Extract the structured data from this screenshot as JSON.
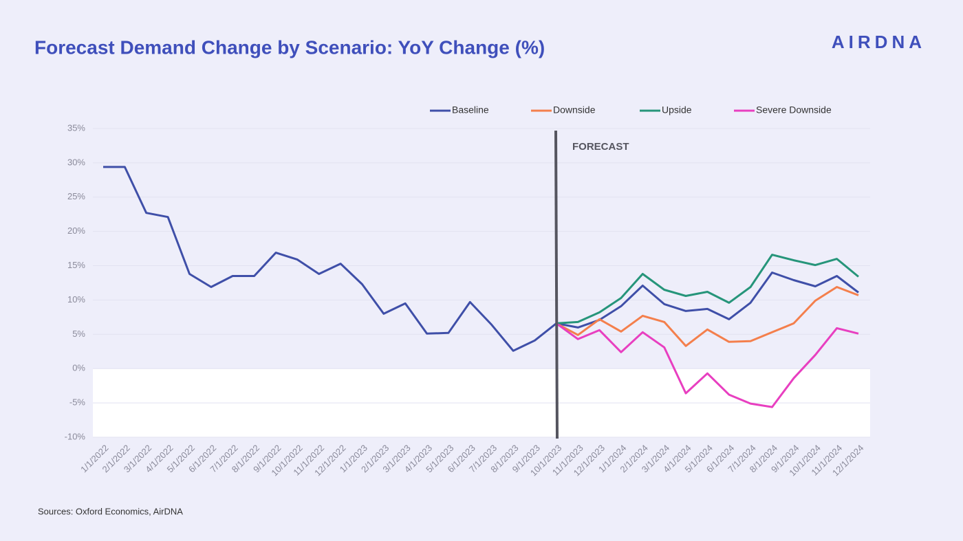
{
  "chart_data": {
    "type": "line",
    "title": "Forecast Demand Change by Scenario: YoY Change (%)",
    "logo": "AIRDNA",
    "annotation": "FORECAST",
    "source": "Sources: Oxford Economics, AirDNA",
    "categories": [
      "1/1/2022",
      "2/1/2022",
      "3/1/2022",
      "4/1/2022",
      "5/1/2022",
      "6/1/2022",
      "7/1/2022",
      "8/1/2022",
      "9/1/2022",
      "10/1/2022",
      "11/1/2022",
      "12/1/2022",
      "1/1/2023",
      "2/1/2023",
      "3/1/2023",
      "4/1/2023",
      "5/1/2023",
      "6/1/2023",
      "7/1/2023",
      "8/1/2023",
      "9/1/2023",
      "10/1/2023",
      "11/1/2023",
      "12/1/2023",
      "1/1/2024",
      "2/1/2024",
      "3/1/2024",
      "4/1/2024",
      "5/1/2024",
      "6/1/2024",
      "7/1/2024",
      "8/1/2024",
      "9/1/2024",
      "10/1/2024",
      "11/1/2024",
      "12/1/2024"
    ],
    "series": [
      {
        "name": "Baseline",
        "color": "#3f4fa8",
        "values": [
          29.4,
          29.4,
          22.7,
          22.1,
          13.8,
          11.9,
          13.5,
          13.5,
          16.9,
          15.9,
          13.8,
          15.3,
          12.3,
          8.0,
          9.5,
          5.1,
          5.2,
          9.7,
          6.4,
          2.6,
          4.1,
          6.6,
          6.0,
          7.1,
          9.1,
          12.1,
          9.4,
          8.4,
          8.7,
          7.2,
          9.6,
          14.0,
          12.9,
          12.0,
          13.5,
          11.1
        ]
      },
      {
        "name": "Downside",
        "color": "#f47f4c",
        "values": [
          null,
          null,
          null,
          null,
          null,
          null,
          null,
          null,
          null,
          null,
          null,
          null,
          null,
          null,
          null,
          null,
          null,
          null,
          null,
          null,
          null,
          6.6,
          4.9,
          7.2,
          5.4,
          7.7,
          6.8,
          3.3,
          5.7,
          3.9,
          4.0,
          5.3,
          6.6,
          9.9,
          11.9,
          10.7
        ]
      },
      {
        "name": "Upside",
        "color": "#26957a",
        "values": [
          null,
          null,
          null,
          null,
          null,
          null,
          null,
          null,
          null,
          null,
          null,
          null,
          null,
          null,
          null,
          null,
          null,
          null,
          null,
          null,
          null,
          6.6,
          6.8,
          8.2,
          10.3,
          13.8,
          11.5,
          10.6,
          11.2,
          9.6,
          11.9,
          16.6,
          15.8,
          15.1,
          16.0,
          13.4
        ]
      },
      {
        "name": "Severe Downside",
        "color": "#e83fc0",
        "values": [
          null,
          null,
          null,
          null,
          null,
          null,
          null,
          null,
          null,
          null,
          null,
          null,
          null,
          null,
          null,
          null,
          null,
          null,
          null,
          null,
          null,
          6.6,
          4.3,
          5.6,
          2.4,
          5.3,
          3.1,
          -3.6,
          -0.7,
          -3.8,
          -5.1,
          -5.6,
          -1.4,
          2.0,
          5.9,
          5.1
        ]
      }
    ],
    "ylim": [
      -10,
      35
    ],
    "yticks": [
      {
        "value": -10,
        "label": "-10%"
      },
      {
        "value": -5,
        "label": "-5%"
      },
      {
        "value": 0,
        "label": "0%"
      },
      {
        "value": 5,
        "label": "5%"
      },
      {
        "value": 10,
        "label": "10%"
      },
      {
        "value": 15,
        "label": "15%"
      },
      {
        "value": 20,
        "label": "20%"
      },
      {
        "value": 25,
        "label": "25%"
      },
      {
        "value": 30,
        "label": "30%"
      },
      {
        "value": 35,
        "label": "35%"
      }
    ],
    "grid": true
  }
}
